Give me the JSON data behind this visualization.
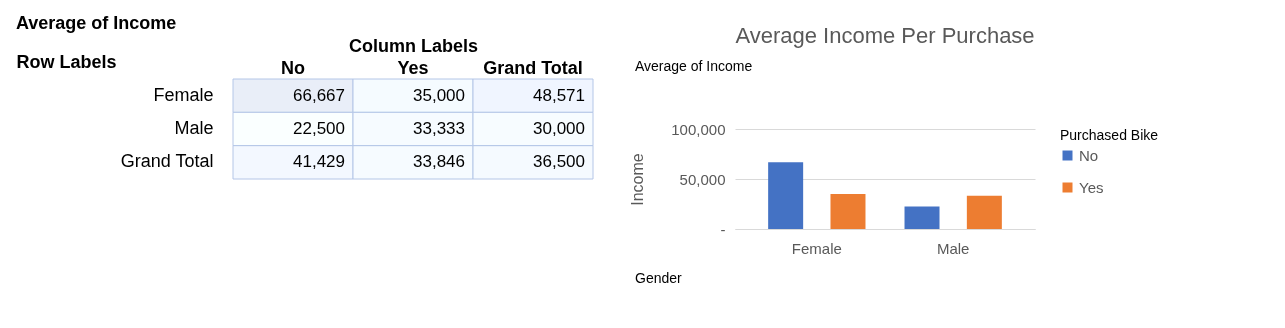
{
  "chart_data": [
    {
      "type": "heatmap",
      "title": "Average of Income",
      "xlabel": "Column Labels",
      "ylabel": "Row Labels",
      "categories": [
        "No",
        "Yes",
        "Grand Total"
      ],
      "y_categories": [
        "Female",
        "Male",
        "Grand Total"
      ],
      "cells": [
        [
          66667,
          35000,
          48571
        ],
        [
          22500,
          33333,
          30000
        ],
        [
          41429,
          33846,
          36500
        ]
      ],
      "cell_labels": [
        [
          "66,667",
          "35,000",
          "48,571"
        ],
        [
          "22,500",
          "33,333",
          "30,000"
        ],
        [
          "41,429",
          "33,846",
          "36,500"
        ]
      ]
    },
    {
      "type": "bar",
      "title": "Average Income Per Purchase",
      "ylabel": "Income",
      "legend_title": "Purchased Bike",
      "categories": [
        "Female",
        "Male"
      ],
      "series": [
        {
          "name": "No",
          "color": "#4472c4",
          "values": [
            66667,
            22500
          ]
        },
        {
          "name": "Yes",
          "color": "#ed7d31",
          "values": [
            35000,
            33333
          ]
        }
      ],
      "ylim": [
        0,
        100000
      ],
      "yticks": [
        {
          "value": 0,
          "label": "-"
        },
        {
          "value": 50000,
          "label": "50,000"
        },
        {
          "value": 100000,
          "label": "100,000"
        }
      ],
      "grid": "y",
      "legend": "right",
      "annotations": [
        "Average of Income",
        "Gender"
      ]
    }
  ]
}
